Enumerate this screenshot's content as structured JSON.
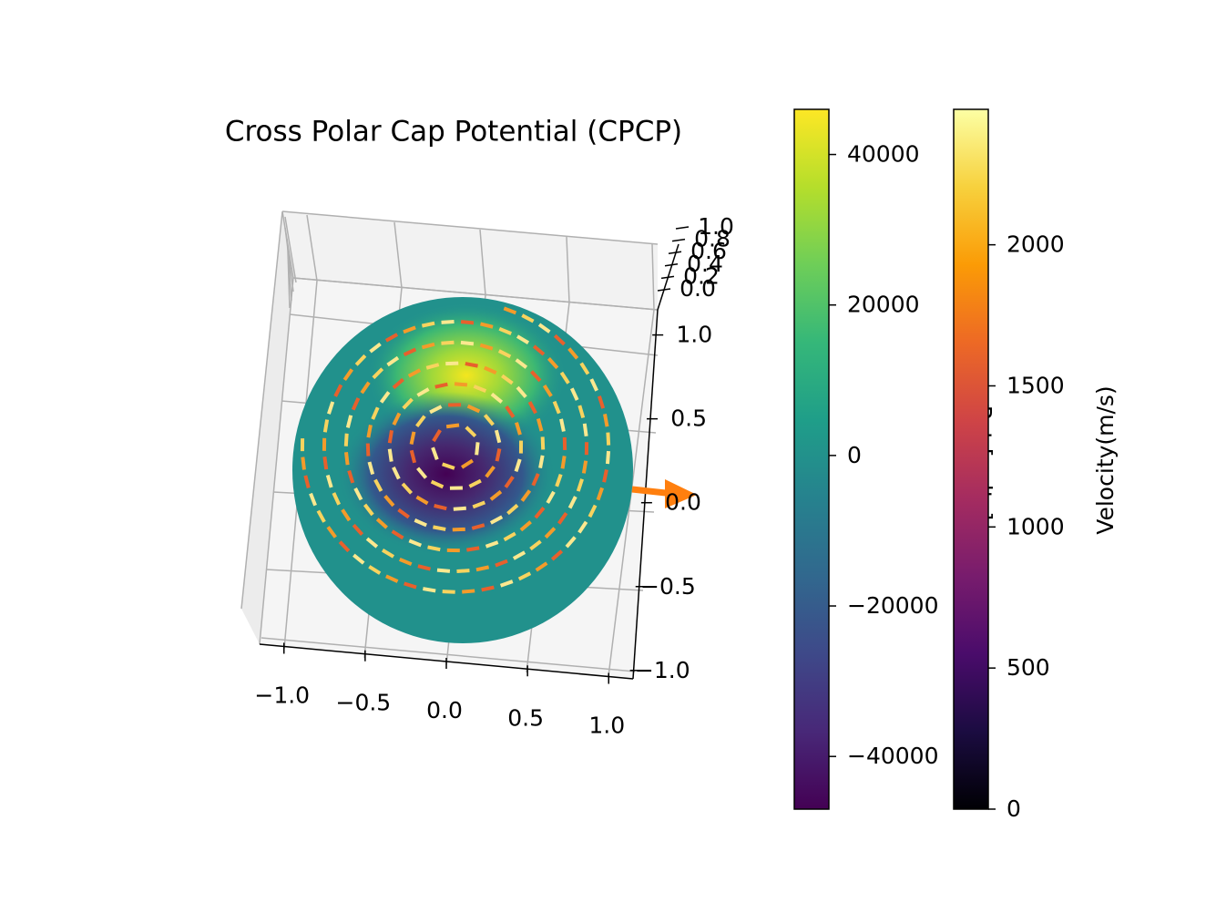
{
  "chart_data": {
    "type": "sphere3d",
    "title": "Cross Polar Cap Potential (CPCP)",
    "xlim": [
      -1.15,
      1.15
    ],
    "xticks": [
      {
        "value": -1.0,
        "label": "−1.0"
      },
      {
        "value": -0.5,
        "label": "−0.5"
      },
      {
        "value": 0.0,
        "label": "0.0"
      },
      {
        "value": 0.5,
        "label": "0.5"
      },
      {
        "value": 1.0,
        "label": "1.0"
      }
    ],
    "ylim": [
      -1.05,
      1.15
    ],
    "yticks": [
      {
        "value": -1.0,
        "label": "−1.0"
      },
      {
        "value": -0.5,
        "label": "−0.5"
      },
      {
        "value": 0.0,
        "label": "0.0"
      },
      {
        "value": 0.5,
        "label": "0.5"
      },
      {
        "value": 1.0,
        "label": "1.0"
      }
    ],
    "zlim": [
      0.0,
      1.0
    ],
    "zticks": [
      {
        "value": 0.0,
        "label": "0.0"
      },
      {
        "value": 0.2,
        "label": "0.2"
      },
      {
        "value": 0.4,
        "label": "0.4"
      },
      {
        "value": 0.6,
        "label": "0.6"
      },
      {
        "value": 0.8,
        "label": "0.8"
      },
      {
        "value": 1.0,
        "label": "1.0"
      }
    ],
    "colorbars": [
      {
        "label": "Pot [volts]",
        "cmap": "viridis",
        "lim": [
          -47000,
          46000
        ],
        "ticks": [
          {
            "value": -40000,
            "label": "−40000"
          },
          {
            "value": -20000,
            "label": "−20000"
          },
          0,
          20000,
          40000
        ]
      },
      {
        "label": "Velocity(m/s)",
        "cmap": "inferno",
        "lim": [
          0,
          2480
        ],
        "ticks": [
          0,
          500,
          1000,
          1500,
          2000
        ]
      }
    ]
  }
}
